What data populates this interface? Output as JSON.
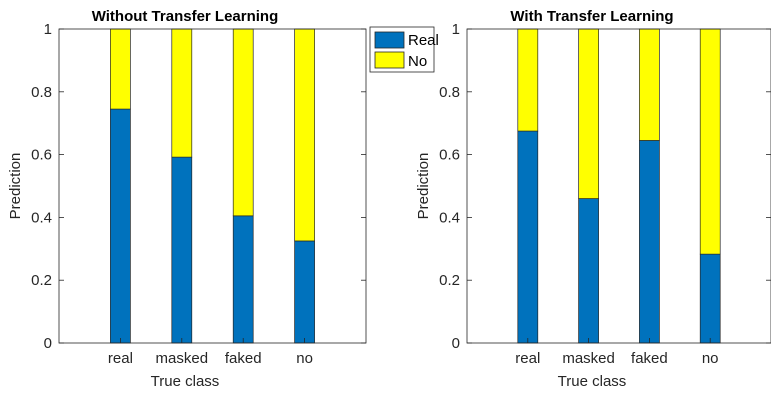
{
  "chart_data": [
    {
      "type": "bar",
      "stacked": true,
      "title": "Without Transfer Learning",
      "xlabel": "True class",
      "ylabel": "Prediction",
      "categories": [
        "real",
        "masked",
        "faked",
        "no"
      ],
      "ylim": [
        0,
        1
      ],
      "yticks": [
        "0",
        "0.2",
        "0.4",
        "0.6",
        "0.8",
        "1"
      ],
      "series": [
        {
          "name": "Real",
          "color": "#0072BD",
          "values": [
            0.745,
            0.592,
            0.405,
            0.325
          ]
        },
        {
          "name": "No",
          "color": "#FFFF00",
          "values": [
            0.255,
            0.408,
            0.595,
            0.675
          ]
        }
      ]
    },
    {
      "type": "bar",
      "stacked": true,
      "title": "With Transfer Learning",
      "xlabel": "True class",
      "ylabel": "Prediction",
      "categories": [
        "real",
        "masked",
        "faked",
        "no"
      ],
      "ylim": [
        0,
        1
      ],
      "yticks": [
        "0",
        "0.2",
        "0.4",
        "0.6",
        "0.8",
        "1"
      ],
      "series": [
        {
          "name": "Real",
          "color": "#0072BD",
          "values": [
            0.675,
            0.46,
            0.645,
            0.283
          ]
        },
        {
          "name": "No",
          "color": "#FFFF00",
          "values": [
            0.325,
            0.54,
            0.355,
            0.717
          ]
        }
      ]
    }
  ],
  "legend": {
    "placement": "between-panels-top",
    "items": [
      {
        "label": "Real",
        "color": "#0072BD"
      },
      {
        "label": "No",
        "color": "#FFFF00"
      }
    ]
  }
}
